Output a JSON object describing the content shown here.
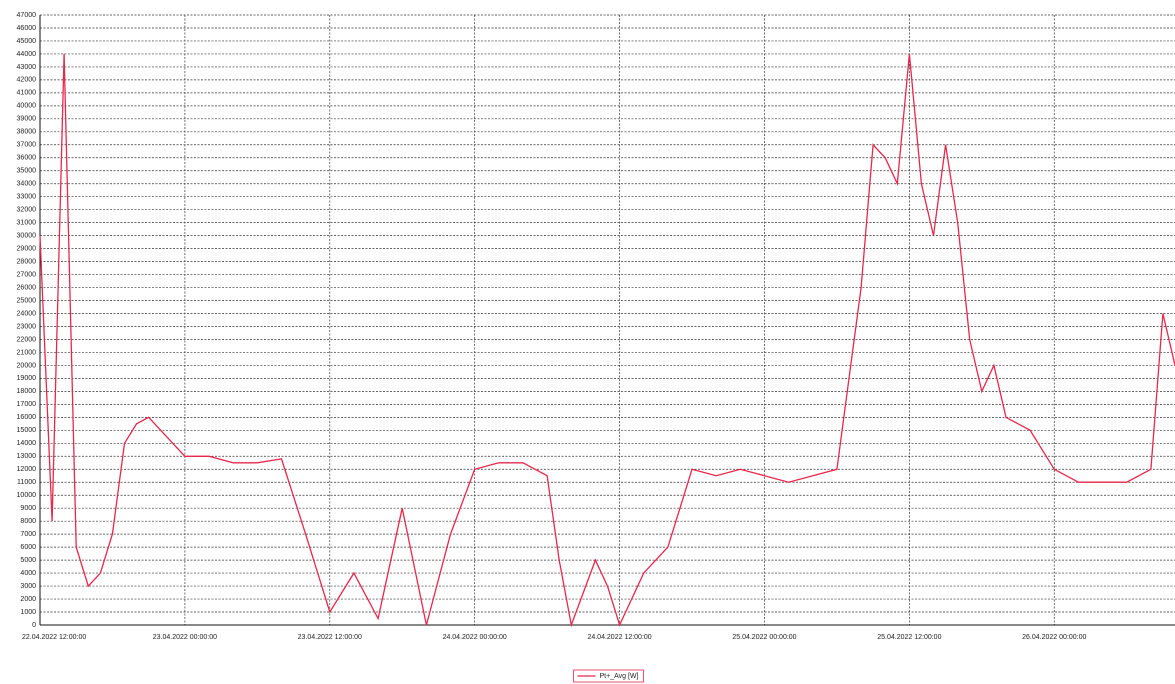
{
  "chart_data": {
    "type": "line",
    "x": [
      "22.04.2022 12:00:00",
      "22.04.2022 13:00:00",
      "22.04.2022 14:00:00",
      "22.04.2022 15:00:00",
      "22.04.2022 16:00:00",
      "22.04.2022 17:00:00",
      "22.04.2022 18:00:00",
      "22.04.2022 19:00:00",
      "22.04.2022 20:00:00",
      "22.04.2022 21:00:00",
      "22.04.2022 22:00:00",
      "22.04.2022 23:00:00",
      "23.04.2022 00:00:00",
      "23.04.2022 02:00:00",
      "23.04.2022 04:00:00",
      "23.04.2022 06:00:00",
      "23.04.2022 08:00:00",
      "23.04.2022 10:00:00",
      "23.04.2022 12:00:00",
      "23.04.2022 14:00:00",
      "23.04.2022 16:00:00",
      "23.04.2022 18:00:00",
      "23.04.2022 20:00:00",
      "23.04.2022 22:00:00",
      "24.04.2022 00:00:00",
      "24.04.2022 02:00:00",
      "24.04.2022 04:00:00",
      "24.04.2022 06:00:00",
      "24.04.2022 07:00:00",
      "24.04.2022 08:00:00",
      "24.04.2022 10:00:00",
      "24.04.2022 11:00:00",
      "24.04.2022 12:00:00",
      "24.04.2022 14:00:00",
      "24.04.2022 16:00:00",
      "24.04.2022 18:00:00",
      "24.04.2022 20:00:00",
      "24.04.2022 22:00:00",
      "25.04.2022 00:00:00",
      "25.04.2022 02:00:00",
      "25.04.2022 04:00:00",
      "25.04.2022 06:00:00",
      "25.04.2022 08:00:00",
      "25.04.2022 09:00:00",
      "25.04.2022 10:00:00",
      "25.04.2022 11:00:00",
      "25.04.2022 12:00:00",
      "25.04.2022 13:00:00",
      "25.04.2022 14:00:00",
      "25.04.2022 15:00:00",
      "25.04.2022 16:00:00",
      "25.04.2022 17:00:00",
      "25.04.2022 18:00:00",
      "25.04.2022 19:00:00",
      "25.04.2022 20:00:00",
      "25.04.2022 22:00:00",
      "26.04.2022 00:00:00",
      "26.04.2022 02:00:00",
      "26.04.2022 04:00:00",
      "26.04.2022 06:00:00",
      "26.04.2022 08:00:00",
      "26.04.2022 09:00:00",
      "26.04.2022 10:00:00"
    ],
    "series": [
      {
        "name": "Pt+_Avg [W]",
        "color": "#e8274b",
        "values": [
          30000,
          8000,
          44000,
          6000,
          3000,
          4000,
          7000,
          14000,
          15500,
          16000,
          15000,
          14000,
          13000,
          13000,
          12500,
          12500,
          12800,
          7000,
          1000,
          4000,
          500,
          9000,
          0,
          7000,
          12000,
          12500,
          12500,
          11500,
          5000,
          0,
          5000,
          3000,
          0,
          4000,
          6000,
          12000,
          11500,
          12000,
          11500,
          11000,
          11500,
          12000,
          26000,
          37000,
          36000,
          34000,
          44000,
          34000,
          30000,
          37000,
          31000,
          22000,
          18000,
          20000,
          16000,
          15000,
          12000,
          11000,
          11000,
          11000,
          12000,
          24000,
          20000
        ]
      }
    ],
    "xlim": [
      "22.04.2022 12:00:00",
      "26.04.2022 10:00:00"
    ],
    "xticks": [
      "22.04.2022 12:00:00",
      "23.04.2022 00:00:00",
      "23.04.2022 12:00:00",
      "24.04.2022 00:00:00",
      "24.04.2022 12:00:00",
      "25.04.2022 00:00:00",
      "25.04.2022 12:00:00",
      "26.04.2022 00:00:00"
    ],
    "ylim": [
      0,
      47000
    ],
    "yticks": [
      0,
      1000,
      2000,
      3000,
      4000,
      5000,
      6000,
      7000,
      8000,
      9000,
      10000,
      11000,
      12000,
      13000,
      14000,
      15000,
      16000,
      17000,
      18000,
      19000,
      20000,
      21000,
      22000,
      23000,
      24000,
      25000,
      26000,
      27000,
      28000,
      29000,
      30000,
      31000,
      32000,
      33000,
      34000,
      35000,
      36000,
      37000,
      38000,
      39000,
      40000,
      41000,
      42000,
      43000,
      44000,
      45000,
      46000,
      47000
    ],
    "grid": true,
    "legend": "bottom"
  }
}
